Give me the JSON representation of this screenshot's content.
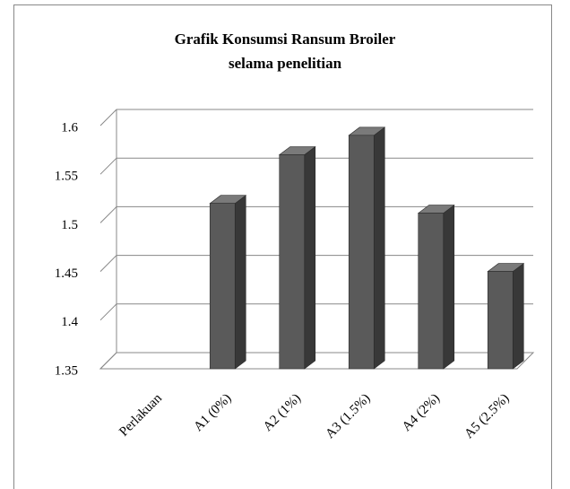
{
  "chart_data": {
    "type": "bar",
    "title": "Grafik  Konsumsi Ransum  Broiler",
    "subtitle": "selama penelitian",
    "categories": [
      "Perlakuan",
      "A1 (0%)",
      "A2 (1%)",
      "A3 (1.5%)",
      "A4 (2%)",
      "A5 (2.5%)"
    ],
    "values": [
      null,
      1.52,
      1.57,
      1.59,
      1.51,
      1.45
    ],
    "color": "#5a5a5a",
    "ylim": [
      1.35,
      1.6
    ],
    "yticks": [
      1.35,
      1.4,
      1.45,
      1.5,
      1.55,
      1.6
    ],
    "grid": true
  }
}
